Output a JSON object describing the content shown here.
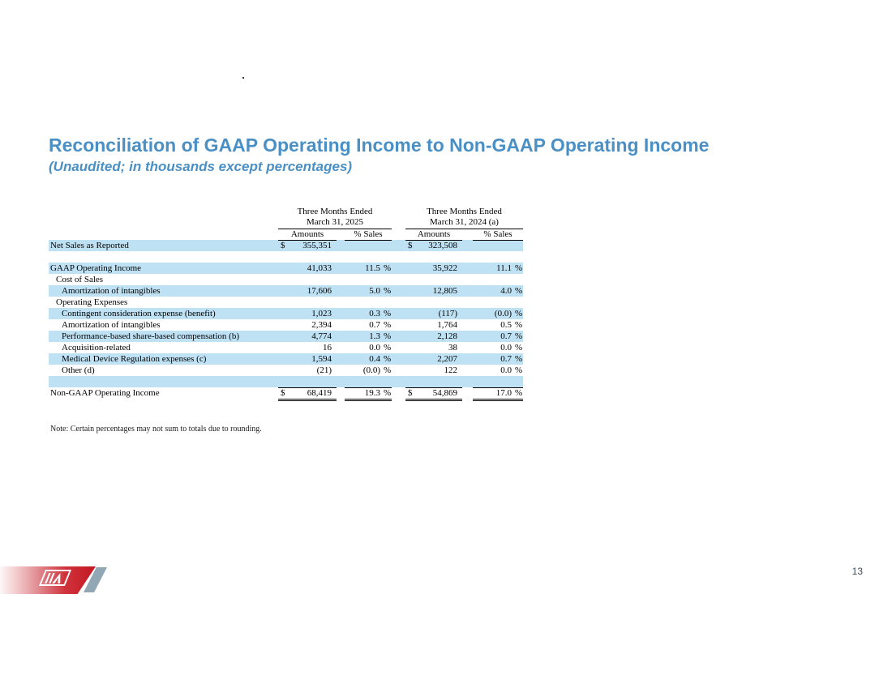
{
  "title": "Reconciliation of GAAP Operating Income to Non-GAAP Operating Income",
  "subtitle": "(Unaudited; in thousands except percentages)",
  "note": "Note: Certain percentages may not sum to totals due to rounding.",
  "page_number": "13",
  "stray_dot": ".",
  "colors": {
    "accent": "#4A90C5",
    "shade": "#BEE1F4",
    "logoRed": "#C31722",
    "logoGray": "#92A7B4"
  },
  "table": {
    "pct_symbol": "%",
    "col_groups": [
      {
        "line1": "Three Months Ended",
        "line2": "March 31, 2025",
        "amounts_label": "Amounts",
        "pct_label": "% Sales"
      },
      {
        "line1": "Three Months Ended",
        "line2": "March 31, 2024 (a)",
        "amounts_label": "Amounts",
        "pct_label": "% Sales"
      }
    ],
    "rows": [
      {
        "label": "Net Sales as Reported",
        "indent": 0,
        "shaded": true,
        "d1": "$",
        "a1": "355,351",
        "p1": "",
        "d2": "$",
        "a2": "323,508",
        "p2": ""
      },
      {
        "label": "",
        "blank": true,
        "shaded": false
      },
      {
        "label": "GAAP Operating Income",
        "indent": 0,
        "shaded": true,
        "a1": "41,033",
        "p1": "11.5",
        "a2": "35,922",
        "p2": "11.1"
      },
      {
        "label": "Cost of Sales",
        "indent": 1,
        "shaded": false
      },
      {
        "label": "Amortization of intangibles",
        "indent": 2,
        "shaded": true,
        "a1": "17,606",
        "p1": "5.0",
        "a2": "12,805",
        "p2": "4.0"
      },
      {
        "label": "Operating Expenses",
        "indent": 1,
        "shaded": false
      },
      {
        "label": "Contingent consideration expense (benefit)",
        "indent": 2,
        "shaded": true,
        "a1": "1,023",
        "p1": "0.3",
        "a2": "(117)",
        "p2": "(0.0)"
      },
      {
        "label": "Amortization of intangibles",
        "indent": 2,
        "shaded": false,
        "a1": "2,394",
        "p1": "0.7",
        "a2": "1,764",
        "p2": "0.5"
      },
      {
        "label": "Performance-based share-based compensation (b)",
        "indent": 2,
        "shaded": true,
        "a1": "4,774",
        "p1": "1.3",
        "a2": "2,128",
        "p2": "0.7"
      },
      {
        "label": "Acquisition-related",
        "indent": 2,
        "shaded": false,
        "a1": "16",
        "p1": "0.0",
        "a2": "38",
        "p2": "0.0"
      },
      {
        "label": "Medical Device Regulation expenses (c)",
        "indent": 2,
        "shaded": true,
        "a1": "1,594",
        "p1": "0.4",
        "a2": "2,207",
        "p2": "0.7"
      },
      {
        "label": "Other (d)",
        "indent": 2,
        "shaded": false,
        "a1": "(21)",
        "p1": "(0.0)",
        "a2": "122",
        "p2": "0.0"
      },
      {
        "label": "",
        "blank": true,
        "shaded": true
      },
      {
        "label": "Non-GAAP Operating Income",
        "indent": 0,
        "shaded": false,
        "total": true,
        "d1": "$",
        "a1": "68,419",
        "p1": "19.3",
        "d2": "$",
        "a2": "54,869",
        "p2": "17.0"
      }
    ]
  }
}
